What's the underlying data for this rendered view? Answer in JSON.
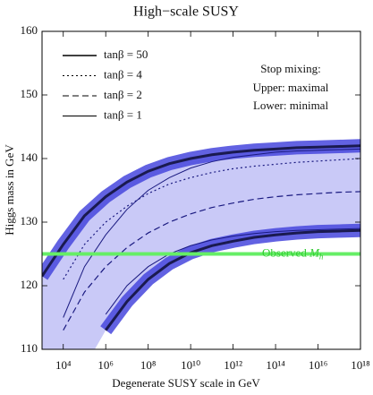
{
  "chart_data": {
    "type": "line",
    "title": "High−scale SUSY",
    "x_label": "Degenerate SUSY scale in GeV",
    "y_label": "Higgs mass in GeV",
    "log_x": true,
    "xlim": [
      1000,
      1e+18
    ],
    "ylim": [
      110,
      160
    ],
    "xticks": [
      {
        "value": 10000,
        "label": "10⁴"
      },
      {
        "value": 1000000,
        "label": "10⁶"
      },
      {
        "value": 100000000,
        "label": "10⁸"
      },
      {
        "value": 10000000000,
        "label": "10¹⁰"
      },
      {
        "value": 1000000000000,
        "label": "10¹²"
      },
      {
        "value": 100000000000000,
        "label": "10¹⁴"
      },
      {
        "value": 10000000000000000,
        "label": "10¹⁶"
      },
      {
        "value": 1000000000000000000,
        "label": "10¹⁸"
      }
    ],
    "yticks": [
      110,
      120,
      130,
      140,
      150,
      160
    ],
    "x": [
      1000,
      10000,
      100000,
      1000000,
      10000000,
      100000000,
      1000000000,
      10000000000,
      100000000000,
      1000000000000,
      10000000000000,
      100000000000000,
      1000000000000000,
      10000000000000000,
      100000000000000000,
      1000000000000000000
    ],
    "series": [
      {
        "name": "tanβ = 50",
        "color": "#1a1a50",
        "dash": "none",
        "width": 3,
        "upper": [
          121.5,
          126.5,
          131,
          134,
          136.3,
          138,
          139.2,
          140,
          140.6,
          141,
          141.3,
          141.5,
          141.7,
          141.8,
          141.9,
          142
        ],
        "lower": [
          null,
          null,
          null,
          113,
          117.5,
          121,
          123.5,
          125.2,
          126.3,
          127,
          127.6,
          128,
          128.3,
          128.5,
          128.6,
          128.7
        ]
      },
      {
        "name": "tanβ = 4",
        "color": "#1a1a80",
        "dash": "2 3",
        "width": 1.2,
        "upper": [
          null,
          121,
          126.5,
          130,
          132.5,
          134.5,
          136,
          137,
          137.8,
          138.4,
          138.8,
          139.1,
          139.4,
          139.6,
          139.8,
          140
        ]
      },
      {
        "name": "tanβ = 2",
        "color": "#1a1a80",
        "dash": "7 4",
        "width": 1.2,
        "upper": [
          null,
          113,
          119,
          123,
          126,
          128.3,
          130,
          131.3,
          132.3,
          133,
          133.6,
          134,
          134.3,
          134.5,
          134.7,
          134.8
        ]
      },
      {
        "name": "tanβ = 1",
        "color": "#1a1a80",
        "dash": "none",
        "width": 1,
        "upper": [
          null,
          115,
          123,
          128,
          132,
          135,
          137,
          138.5,
          139.5,
          140.2,
          140.6,
          141,
          141.2,
          141.3,
          141.4,
          141.5
        ],
        "lower": [
          null,
          null,
          null,
          115.5,
          120,
          123,
          125,
          126.3,
          127.2,
          127.8,
          128.2,
          128.5,
          128.7,
          128.8,
          128.9,
          129
        ]
      }
    ],
    "reference_line": {
      "value": 125,
      "color": "#66ee66",
      "text": "Observed ",
      "symbol": "M",
      "subscript": "h"
    },
    "note": [
      "Stop mixing:",
      "Upper: maximal",
      "Lower: minimal"
    ]
  }
}
